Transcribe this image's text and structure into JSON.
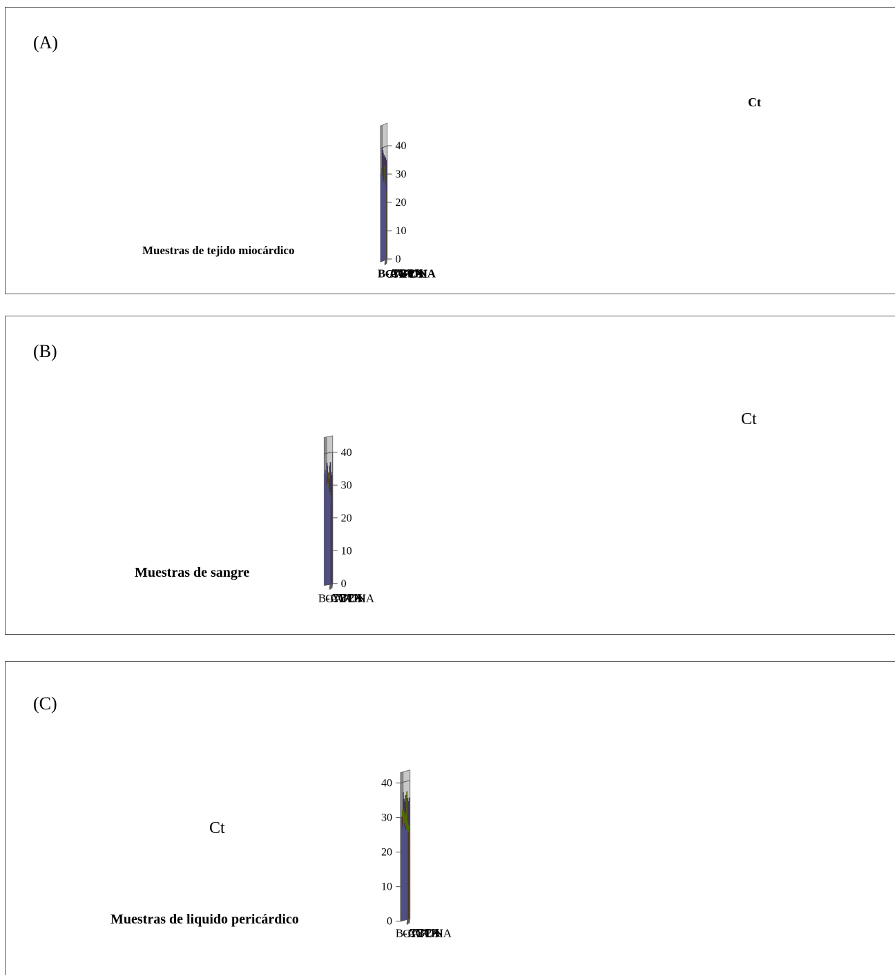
{
  "chart_data": [
    {
      "panel_label": "(A)",
      "type": "bar",
      "view": "3d-columns",
      "x_label": "Muestras de tejido miocárdico",
      "z_label": "Ct",
      "ylim": [
        0,
        40
      ],
      "ticks": [
        "0",
        "10",
        "20",
        "30",
        "40"
      ],
      "series": [
        {
          "name": "GAPDH",
          "color": "#9999ff",
          "values": [
            31,
            30,
            29,
            29,
            28,
            30,
            30,
            26,
            25,
            26,
            27,
            28,
            26,
            27,
            26,
            28,
            26,
            26,
            23,
            24,
            23
          ]
        },
        {
          "name": "B-ACTINA",
          "color": "#993366",
          "values": [
            28,
            28,
            27,
            27,
            26,
            26,
            25,
            24,
            25,
            26,
            26,
            25,
            25,
            26,
            24,
            24
          ]
        },
        {
          "name": "CYCA",
          "color": "#99cc00",
          "values": [
            33,
            30,
            29,
            29,
            28,
            28,
            27,
            27,
            26,
            26,
            25,
            27,
            25,
            27,
            33,
            27,
            26,
            25,
            24
          ]
        },
        {
          "name": "TBPX",
          "color": "#8064a2",
          "values": [
            40,
            39,
            39,
            39,
            38,
            38,
            37,
            36,
            36,
            36,
            37,
            36,
            36,
            35,
            35,
            36,
            35,
            35,
            34,
            35,
            34
          ]
        }
      ]
    },
    {
      "panel_label": "(B)",
      "type": "bar",
      "view": "3d-columns",
      "x_label": "Muestras de sangre",
      "z_label": "Ct",
      "ylim": [
        0,
        40
      ],
      "ticks": [
        "0",
        "10",
        "20",
        "30",
        "40"
      ],
      "series": [
        {
          "name": "GAPDH",
          "color": "#9999ff",
          "values": [
            34,
            35,
            30,
            37,
            31,
            29,
            28,
            27
          ]
        },
        {
          "name": "B-ACTINA",
          "color": "#993366",
          "values": [
            33,
            33,
            30,
            34,
            28,
            28,
            27,
            25
          ]
        },
        {
          "name": "CYCA",
          "color": "#99cc00",
          "values": [
            33,
            33,
            30,
            34,
            28,
            28,
            27,
            25
          ]
        },
        {
          "name": "TBPX",
          "color": "#8064a2",
          "values": [
            37,
            36,
            32,
            32,
            36,
            37,
            34,
            33
          ]
        }
      ]
    },
    {
      "panel_label": "(C)",
      "type": "bar",
      "view": "3d-columns",
      "x_label": "Muestras de liquido pericárdico",
      "z_label": "Ct",
      "ylim": [
        0,
        40
      ],
      "ticks": [
        "0",
        "10",
        "20",
        "30",
        "40"
      ],
      "series": [
        {
          "name": "GAPDH",
          "color": "#9999ff",
          "values": [
            30,
            27,
            28,
            28,
            27,
            26,
            26,
            27
          ]
        },
        {
          "name": "B-ACTINA",
          "color": "#993366",
          "values": [
            30,
            27,
            26,
            28,
            27,
            26,
            26,
            25
          ]
        },
        {
          "name": "CYCA",
          "color": "#99cc00",
          "values": [
            32,
            32,
            31,
            31,
            30,
            37,
            28,
            27
          ]
        },
        {
          "name": "TBPX",
          "color": "#8064a2",
          "values": [
            37,
            35,
            34,
            36,
            35,
            35,
            34,
            35
          ]
        }
      ]
    }
  ]
}
